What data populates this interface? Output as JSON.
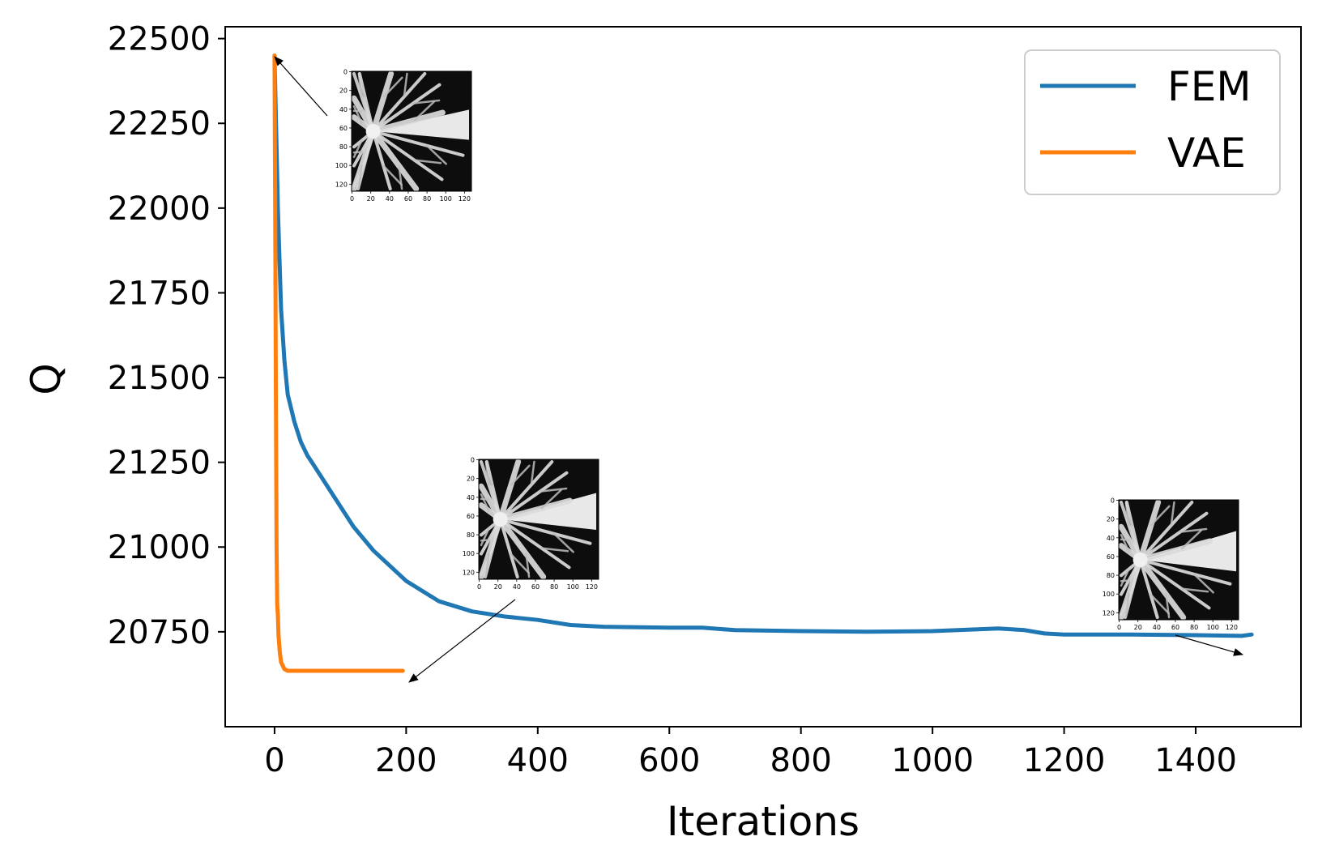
{
  "chart_data": {
    "type": "line",
    "xlabel": "Iterations",
    "ylabel": "Q",
    "xlim": [
      -75,
      1560
    ],
    "ylim": [
      20470,
      22535
    ],
    "xticks": [
      0,
      200,
      400,
      600,
      800,
      1000,
      1200,
      1400
    ],
    "yticks": [
      20750,
      21000,
      21250,
      21500,
      21750,
      22000,
      22250,
      22500
    ],
    "grid": false,
    "legend_position": "top-right",
    "series": [
      {
        "name": "FEM",
        "color": "#1f77b4",
        "x": [
          0,
          5,
          10,
          15,
          20,
          30,
          40,
          50,
          60,
          80,
          100,
          120,
          150,
          200,
          250,
          300,
          350,
          400,
          450,
          500,
          600,
          650,
          700,
          800,
          900,
          1000,
          1100,
          1140,
          1170,
          1200,
          1300,
          1400,
          1470,
          1485
        ],
        "y": [
          22450,
          22000,
          21700,
          21550,
          21450,
          21370,
          21310,
          21270,
          21240,
          21180,
          21120,
          21060,
          20990,
          20900,
          20840,
          20810,
          20795,
          20785,
          20770,
          20765,
          20762,
          20762,
          20755,
          20752,
          20750,
          20752,
          20760,
          20755,
          20745,
          20742,
          20742,
          20740,
          20738,
          20742
        ]
      },
      {
        "name": "VAE",
        "color": "#ff7f0e",
        "x": [
          0,
          1,
          2,
          3,
          4,
          5,
          6,
          8,
          10,
          15,
          20,
          30,
          50,
          100,
          150,
          195
        ],
        "y": [
          22450,
          22000,
          21500,
          21000,
          20830,
          20800,
          20740,
          20690,
          20660,
          20640,
          20635,
          20635,
          20635,
          20635,
          20635,
          20635
        ]
      }
    ],
    "inset_ticks": [
      "0",
      "20",
      "40",
      "60",
      "80",
      "100",
      "120"
    ]
  }
}
